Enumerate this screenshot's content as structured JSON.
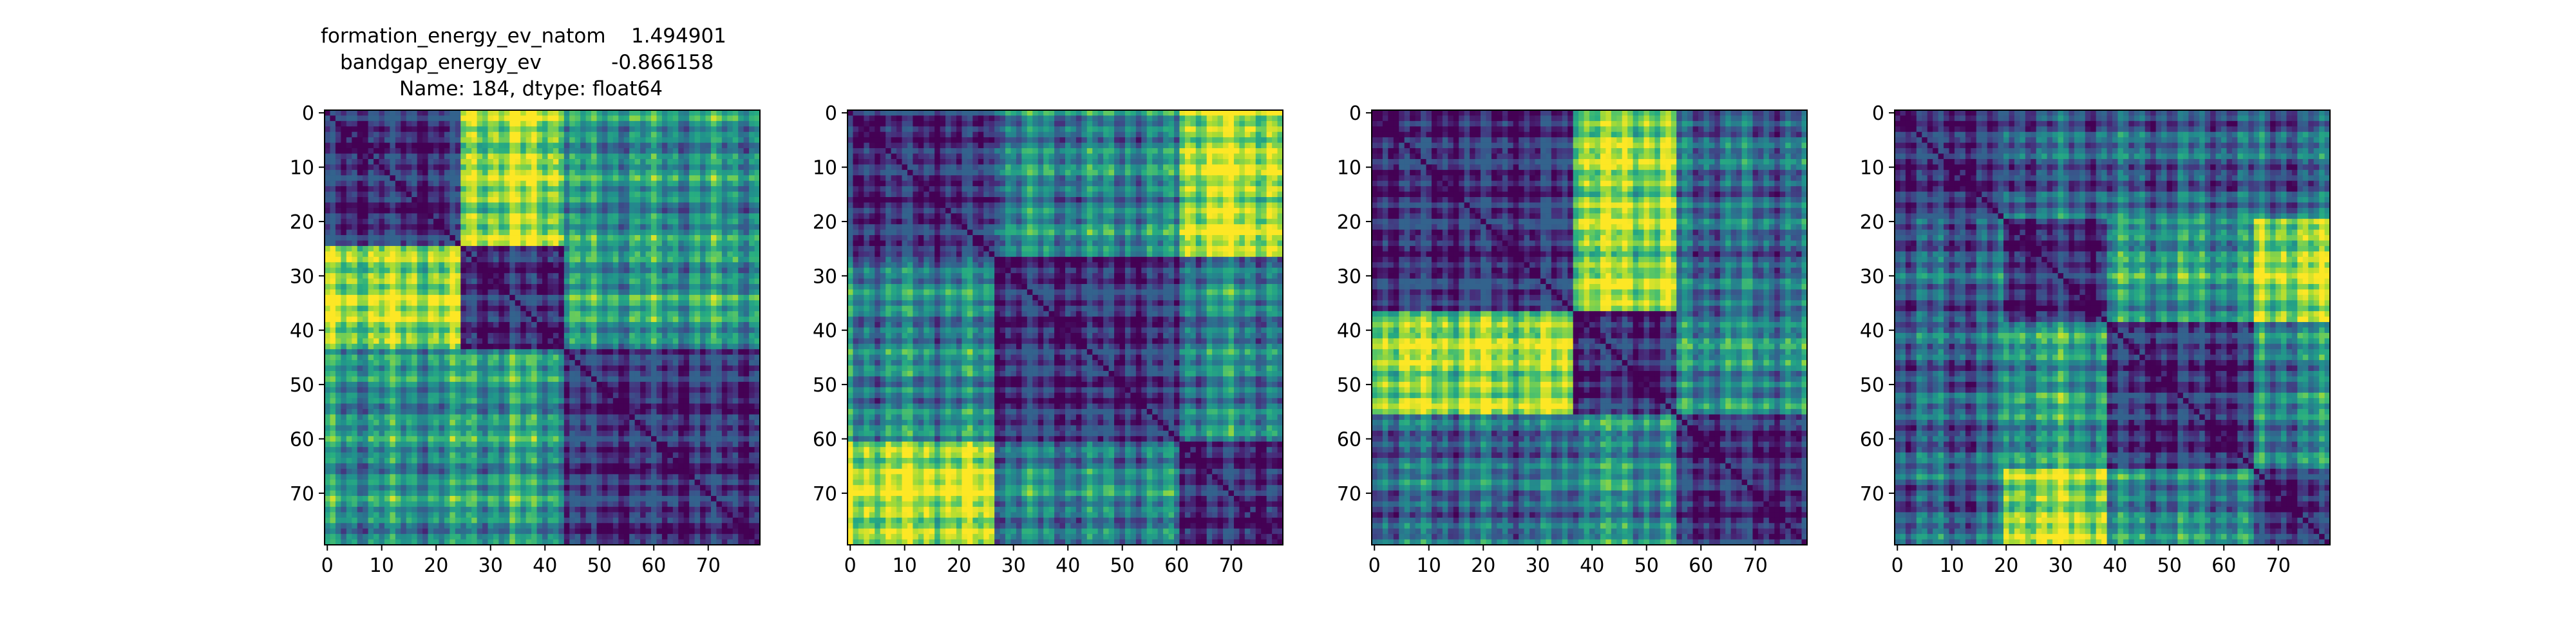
{
  "figure": {
    "title_lines": [
      "formation_energy_ev_natom    1.494901",
      "bandgap_energy_ev           -0.866158",
      "Name: 184, dtype: float64"
    ]
  },
  "chart_data": [
    {
      "type": "heatmap",
      "title": "formation_energy_ev_natom    1.494901\nbandgap_energy_ev           -0.866158\nName: 184, dtype: float64",
      "n": 80,
      "colormap": "viridis",
      "xticks": [
        0,
        10,
        20,
        30,
        40,
        50,
        60,
        70
      ],
      "yticks": [
        0,
        10,
        20,
        30,
        40,
        50,
        60,
        70
      ],
      "block_boundaries": [
        0,
        25,
        44,
        80
      ],
      "block_levels": [
        [
          0.15,
          0.85,
          0.5
        ],
        [
          0.85,
          0.15,
          0.55
        ],
        [
          0.5,
          0.55,
          0.15
        ]
      ]
    },
    {
      "type": "heatmap",
      "title": "",
      "n": 80,
      "colormap": "viridis",
      "xticks": [
        0,
        10,
        20,
        30,
        40,
        50,
        60,
        70
      ],
      "yticks": [
        0,
        10,
        20,
        30,
        40,
        50,
        60,
        70
      ],
      "block_boundaries": [
        0,
        27,
        61,
        80
      ],
      "block_levels": [
        [
          0.15,
          0.45,
          0.9
        ],
        [
          0.45,
          0.15,
          0.45
        ],
        [
          0.9,
          0.45,
          0.15
        ]
      ]
    },
    {
      "type": "heatmap",
      "title": "",
      "n": 80,
      "colormap": "viridis",
      "xticks": [
        0,
        10,
        20,
        30,
        40,
        50,
        60,
        70
      ],
      "yticks": [
        0,
        10,
        20,
        30,
        40,
        50,
        60,
        70
      ],
      "block_boundaries": [
        0,
        37,
        56,
        80
      ],
      "block_levels": [
        [
          0.15,
          0.85,
          0.35
        ],
        [
          0.85,
          0.15,
          0.5
        ],
        [
          0.35,
          0.5,
          0.15
        ]
      ]
    },
    {
      "type": "heatmap",
      "title": "",
      "n": 80,
      "colormap": "viridis",
      "xticks": [
        0,
        10,
        20,
        30,
        40,
        50,
        60,
        70
      ],
      "yticks": [
        0,
        10,
        20,
        30,
        40,
        50,
        60,
        70
      ],
      "block_boundaries": [
        0,
        20,
        39,
        66,
        80
      ],
      "block_levels": [
        [
          0.15,
          0.3,
          0.3,
          0.3
        ],
        [
          0.3,
          0.15,
          0.55,
          0.85
        ],
        [
          0.3,
          0.55,
          0.15,
          0.45
        ],
        [
          0.3,
          0.85,
          0.45,
          0.15
        ]
      ]
    }
  ]
}
